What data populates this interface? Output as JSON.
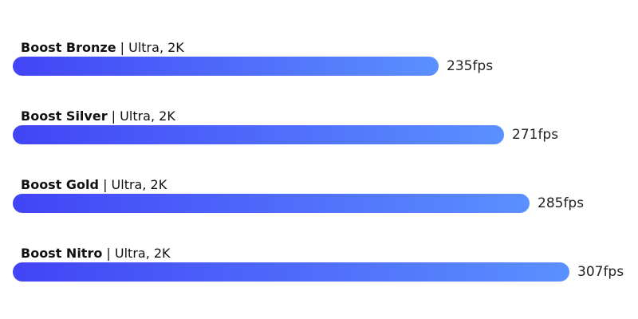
{
  "chart_data": {
    "type": "bar",
    "orientation": "horizontal",
    "categories": [
      "Boost Bronze",
      "Boost Silver",
      "Boost Gold",
      "Boost Nitro"
    ],
    "settings": [
      "Ultra, 2K",
      "Ultra, 2K",
      "Ultra, 2K",
      "Ultra, 2K"
    ],
    "values": [
      235,
      271,
      285,
      307
    ],
    "value_labels": [
      "235fps",
      "271fps",
      "285fps",
      "307fps"
    ],
    "label_separator": "|",
    "unit": "fps",
    "title": "",
    "xlabel": "",
    "ylabel": "",
    "xlim": [
      0,
      307
    ],
    "grid": false,
    "legend": "none",
    "colors": {
      "bar_start": "#4244f6",
      "bar_end": "#5b90ff"
    }
  }
}
